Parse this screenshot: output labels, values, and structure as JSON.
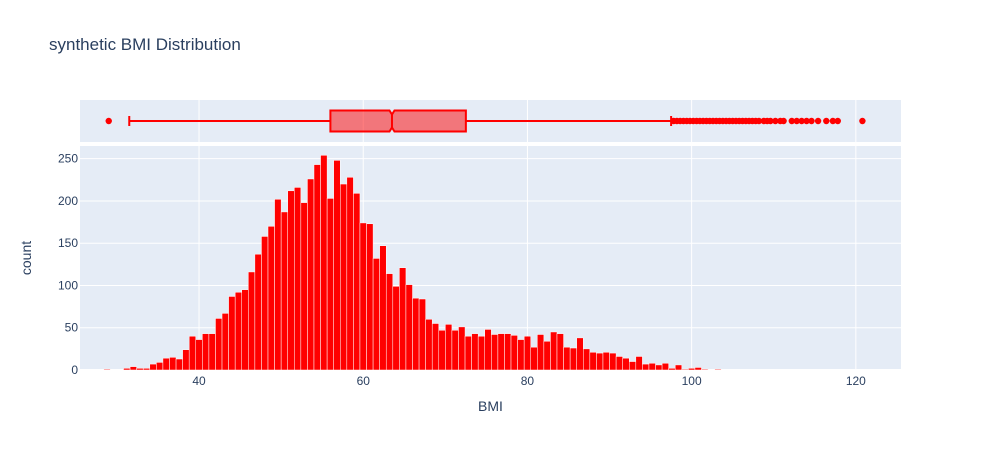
{
  "chart_data": [
    {
      "type": "box",
      "orientation": "horizontal",
      "title": "synthetic BMI Distribution",
      "color": "#ff0000",
      "whisker_low": 31.5,
      "q1": 56,
      "median": 63.5,
      "q3": 72.5,
      "whisker_high": 97.5,
      "outliers": [
        29,
        97.8,
        98.2,
        98.6,
        99,
        99.4,
        99.8,
        100.2,
        100.6,
        101,
        101.4,
        101.8,
        102.2,
        102.6,
        103,
        103.4,
        103.8,
        104.2,
        104.6,
        105,
        105.4,
        105.8,
        106.2,
        106.6,
        107,
        107.4,
        107.8,
        108.2,
        108.8,
        109.2,
        109.6,
        110.2,
        110.8,
        111.2,
        112.2,
        112.8,
        113.4,
        114,
        114.6,
        115.4,
        116.4,
        117.2,
        117.8,
        120.8
      ]
    },
    {
      "type": "histogram",
      "xlabel": "BMI",
      "ylabel": "count",
      "xlim": [
        25.5,
        125.5
      ],
      "ylim": [
        0,
        265
      ],
      "xticks": [
        40,
        60,
        80,
        100,
        120
      ],
      "yticks": [
        0,
        50,
        100,
        150,
        200,
        250
      ],
      "grid": true,
      "color": "#ff0000",
      "bin_width": 0.8,
      "bin_start": 28.4,
      "values": [
        1,
        0,
        0,
        2,
        4,
        2,
        2,
        7,
        9,
        14,
        15,
        13,
        24,
        40,
        36,
        43,
        43,
        61,
        67,
        87,
        92,
        95,
        116,
        137,
        158,
        170,
        202,
        187,
        212,
        216,
        198,
        226,
        243,
        254,
        203,
        248,
        220,
        228,
        209,
        174,
        173,
        132,
        147,
        114,
        99,
        121,
        101,
        85,
        84,
        60,
        55,
        47,
        54,
        47,
        51,
        40,
        43,
        40,
        48,
        42,
        43,
        43,
        41,
        36,
        40,
        27,
        42,
        34,
        45,
        43,
        27,
        26,
        38,
        25,
        21,
        20,
        21,
        20,
        16,
        14,
        10,
        16,
        7,
        8,
        6,
        8,
        2,
        6,
        1,
        2,
        3,
        1,
        0,
        1
      ]
    }
  ]
}
